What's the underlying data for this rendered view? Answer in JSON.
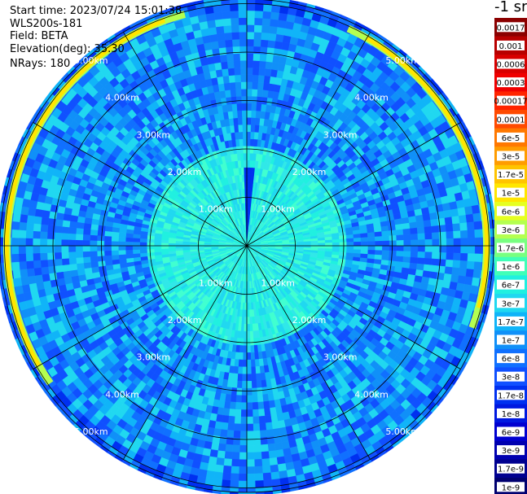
{
  "info": {
    "start_time": "Start time: 2023/07/24 15:01:38",
    "instrument": "WLS200s-181",
    "field": "Field: BETA",
    "elevation": "Elevation(deg): 35.30",
    "nrays": "NRays: 180"
  },
  "colorbar": {
    "unit": "-1 sr",
    "labels": [
      "0.0017",
      "0.001",
      "0.0006",
      "0.0003",
      "0.00017",
      "0.0001",
      "6e-5",
      "3e-5",
      "1.7e-5",
      "1e-5",
      "6e-6",
      "3e-6",
      "1.7e-6",
      "1e-6",
      "6e-7",
      "3e-7",
      "1.7e-7",
      "1e-7",
      "6e-8",
      "3e-8",
      "1.7e-8",
      "1e-8",
      "6e-9",
      "3e-9",
      "1.7e-9",
      "1e-9"
    ],
    "colors": [
      "#8b0000",
      "#b80000",
      "#d80000",
      "#f00000",
      "#ff2400",
      "#ff4a00",
      "#ff7800",
      "#ff9c00",
      "#ffc400",
      "#ffe600",
      "#e6ff20",
      "#b4ff50",
      "#78ff80",
      "#40ffb8",
      "#20f0e0",
      "#20d8f0",
      "#10b4f8",
      "#1090f8",
      "#1070ff",
      "#1050ff",
      "#0030f0",
      "#0018e0",
      "#0000d0",
      "#0000b0",
      "#000090",
      "#000070"
    ]
  },
  "chart_data": {
    "type": "heatmap",
    "projection": "polar PPI",
    "field": "BETA",
    "elevation_deg": 35.3,
    "nrays": 180,
    "max_range_km": 5.3,
    "range_ring_labels_km": [
      "1.00km",
      "2.00km",
      "3.00km",
      "4.00km",
      "5.00km"
    ],
    "radial_lines_every_deg": 30,
    "description_of_values": [
      {
        "range_km": [
          0,
          2.0
        ],
        "beta": "3e-7 to 6e-7"
      },
      {
        "range_km": [
          2.0,
          4.8
        ],
        "beta": "1e-8 to 1e-7"
      },
      {
        "range_km": [
          4.8,
          5.1
        ],
        "beta": "1e-6 to 1.7e-5 (bright band)"
      },
      {
        "range_km": [
          5.1,
          5.3
        ],
        "beta": "1e-8 to 3e-8"
      }
    ]
  }
}
